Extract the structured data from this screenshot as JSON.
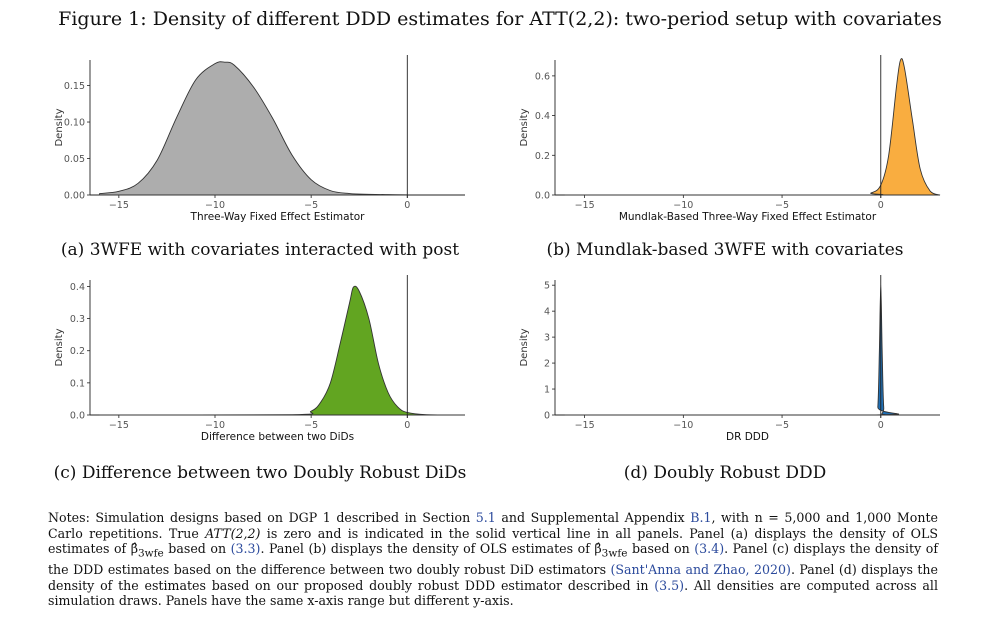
{
  "figure": {
    "title": "Figure 1: Density of different DDD estimates for ATT(2,2): two-period setup with covariates"
  },
  "panels": [
    {
      "caption": "(a) 3WFE with covariates interacted with post"
    },
    {
      "caption": "(b) Mundlak-based 3WFE with covariates"
    },
    {
      "caption": "(c) Difference between two Doubly Robust DiDs"
    },
    {
      "caption": "(d) Doubly Robust DDD"
    }
  ],
  "notes": {
    "s1": "Notes: Simulation designs based on DGP 1 described in Section ",
    "ref_section": "5.1",
    "s2": " and Supplemental Appendix ",
    "ref_appendix": "B.1",
    "s3": ", with n = 5,000 and 1,000 Monte Carlo repetitions. True ",
    "att": "ATT(2,2)",
    "s4": " is zero and is indicated in the solid vertical line in all panels. Panel (a) displays the density of OLS estimates of β̂",
    "sub_3wfe_a": "3wfe",
    "s5": " based on ",
    "ref_eq33": "(3.3)",
    "s6": ". Panel (b) displays the density of OLS estimates of β̂",
    "sub_3wfe_b": "3wfe",
    "s7": " based on ",
    "ref_eq34": "(3.4)",
    "s8": ". Panel (c) displays the density of the DDD estimates based on the difference between two doubly robust DiD estimators ",
    "ref_santanna": "(Sant'Anna and Zhao, 2020)",
    "s9": ". Panel (d) displays the density of the estimates based on our proposed doubly robust DDD estimator described in ",
    "ref_eq35": "(3.5)",
    "s10": ". All densities are computed across all simulation draws. Panels have the same x-axis range but different y-axis."
  },
  "chart_data": [
    {
      "type": "area",
      "xlabel": "Three-Way Fixed Effect Estimator",
      "ylabel": "Density",
      "x_ticks": [
        "−15",
        "−10",
        "−5",
        "0"
      ],
      "y_ticks": [
        "0.00",
        "0.05",
        "0.10",
        "0.15"
      ],
      "xlim": [
        -16.5,
        3
      ],
      "ylim": [
        0,
        0.185
      ],
      "vline": 0,
      "fill": "#adadad",
      "grid": false,
      "x": [
        -16.0,
        -15.0,
        -14.0,
        -13.0,
        -12.0,
        -11.0,
        -10.0,
        -9.5,
        -9.0,
        -8.0,
        -7.0,
        -6.0,
        -5.0,
        -4.0,
        -3.0,
        -2.0,
        -1.0,
        0.0
      ],
      "y": [
        0.002,
        0.005,
        0.016,
        0.048,
        0.106,
        0.158,
        0.18,
        0.182,
        0.178,
        0.148,
        0.105,
        0.055,
        0.021,
        0.006,
        0.002,
        0.001,
        0.0005,
        0.0002
      ]
    },
    {
      "type": "area",
      "xlabel": "Mundlak-Based Three-Way Fixed Effect Estimator",
      "ylabel": "Density",
      "x_ticks": [
        "−15",
        "−10",
        "−5",
        "0"
      ],
      "y_ticks": [
        "0.0",
        "0.2",
        "0.4",
        "0.6"
      ],
      "xlim": [
        -16.5,
        3
      ],
      "ylim": [
        0,
        0.68
      ],
      "vline": 0,
      "fill": "#f9ad40",
      "grid": false,
      "x": [
        -16.0,
        -1.2,
        -0.5,
        0.0,
        0.4,
        0.8,
        1.0,
        1.2,
        1.6,
        2.0,
        2.5,
        3.0
      ],
      "y": [
        0.0,
        0.0,
        0.01,
        0.05,
        0.2,
        0.55,
        0.68,
        0.64,
        0.38,
        0.13,
        0.02,
        0.0
      ]
    },
    {
      "type": "area",
      "xlabel": "Difference between two DiDs",
      "ylabel": "Density",
      "x_ticks": [
        "−15",
        "−10",
        "−5",
        "0"
      ],
      "y_ticks": [
        "0.0",
        "0.1",
        "0.2",
        "0.3",
        "0.4"
      ],
      "xlim": [
        -16.5,
        3
      ],
      "ylim": [
        0,
        0.42
      ],
      "vline": 0,
      "fill": "#62a521",
      "grid": false,
      "x": [
        -16.0,
        -6.0,
        -5.0,
        -4.5,
        -4.0,
        -3.5,
        -3.0,
        -2.8,
        -2.5,
        -2.0,
        -1.5,
        -1.0,
        -0.5,
        0.0,
        1.0,
        3.0
      ],
      "y": [
        0.0,
        0.001,
        0.012,
        0.04,
        0.1,
        0.22,
        0.35,
        0.398,
        0.385,
        0.3,
        0.16,
        0.07,
        0.025,
        0.008,
        0.001,
        0.0
      ]
    },
    {
      "type": "area",
      "xlabel": "DR DDD",
      "ylabel": "Density",
      "x_ticks": [
        "−15",
        "−10",
        "−5",
        "0"
      ],
      "y_ticks": [
        "0",
        "1",
        "2",
        "3",
        "4",
        "5"
      ],
      "xlim": [
        -16.5,
        3
      ],
      "ylim": [
        0,
        5.2
      ],
      "vline": 0,
      "fill": "#1f6fb4",
      "grid": false,
      "x": [
        -16.0,
        -0.3,
        -0.15,
        -0.07,
        0.0,
        0.07,
        0.15,
        0.3,
        3.0
      ],
      "y": [
        0.0,
        0.0,
        0.3,
        2.5,
        5.0,
        2.5,
        0.3,
        0.0,
        0.0
      ]
    }
  ]
}
